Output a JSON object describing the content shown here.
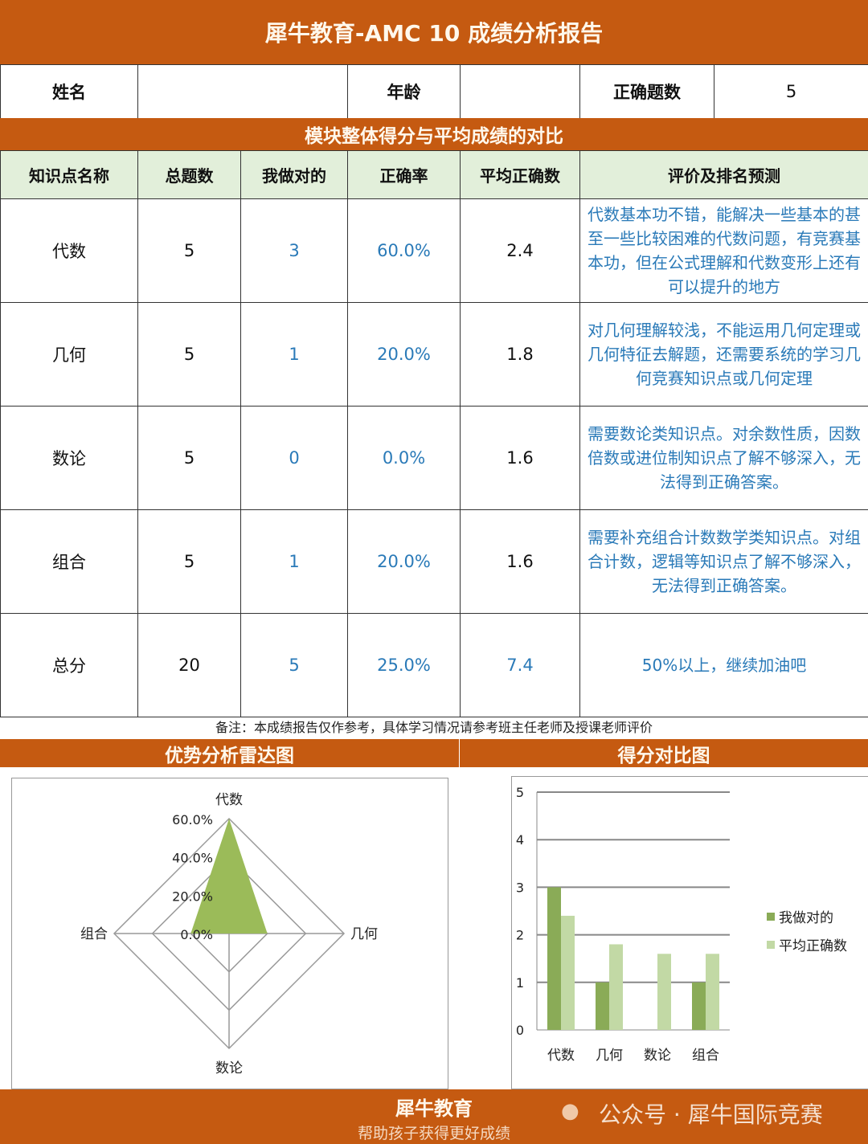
{
  "title": "犀牛教育-AMC 10 成绩分析报告",
  "info": {
    "name_label": "姓名",
    "name_value": "",
    "age_label": "年龄",
    "age_value": "",
    "correct_label": "正确题数",
    "correct_value": "5"
  },
  "section_title": "模块整体得分与平均成绩的对比",
  "table": {
    "headers": [
      "知识点名称",
      "总题数",
      "我做对的",
      "正确率",
      "平均正确数",
      "评价及排名预测"
    ],
    "rows": [
      [
        "代数",
        "5",
        "3",
        "60.0%",
        "2.4",
        "代数基本功不错，能解决一些基本的甚至一些比较困难的代数问题，有竞赛基本功，但在公式理解和代数变形上还有可以提升的地方"
      ],
      [
        "几何",
        "5",
        "1",
        "20.0%",
        "1.8",
        "对几何理解较浅，不能运用几何定理或几何特征去解题，还需要系统的学习几何竞赛知识点或几何定理"
      ],
      [
        "数论",
        "5",
        "0",
        "0.0%",
        "1.6",
        "需要数论类知识点。对余数性质，因数倍数或进位制知识点了解不够深入，无法得到正确答案。"
      ],
      [
        "组合",
        "5",
        "1",
        "20.0%",
        "1.6",
        "需要补充组合计数数学类知识点。对组合计数，逻辑等知识点了解不够深入，无法得到正确答案。"
      ],
      [
        "总分",
        "20",
        "5",
        "25.0%",
        "7.4",
        "50%以上，继续加油吧"
      ]
    ]
  },
  "note": "备注：本成绩报告仅作参考，具体学习情况请参考班主任老师及授课老师评价",
  "radar_title": "优势分析雷达图",
  "bar_title": "得分对比图",
  "chart_data": [
    {
      "type": "radar",
      "categories": [
        "代数",
        "几何",
        "数论",
        "组合"
      ],
      "values": [
        0.6,
        0.2,
        0,
        0.2
      ],
      "tick_labels": [
        "0.0%",
        "20.0%",
        "40.0%",
        "60.0%"
      ],
      "range": [
        0,
        0.6
      ],
      "color": "#9bbb59"
    },
    {
      "type": "bar",
      "categories": [
        "代数",
        "几何",
        "数论",
        "组合"
      ],
      "series": [
        {
          "name": "我做对的",
          "values": [
            3,
            1,
            0,
            1
          ],
          "color": "#8aab57"
        },
        {
          "name": "平均正确数",
          "values": [
            2.4,
            1.8,
            1.6,
            1.6
          ],
          "color": "#c2d9a5"
        }
      ],
      "ylim": [
        0,
        5
      ],
      "yticks": [
        "0",
        "1",
        "2",
        "3",
        "4",
        "5"
      ],
      "grid": true,
      "legend": "right"
    }
  ],
  "footer": {
    "brand": "犀牛教育",
    "slogan": "帮助孩子获得更好成绩",
    "wechat": "公众号 · 犀牛国际竞赛"
  },
  "colors": {
    "accent": "#c55a11",
    "header_bg": "#e2efda",
    "value_text": "#2a7ab8"
  }
}
